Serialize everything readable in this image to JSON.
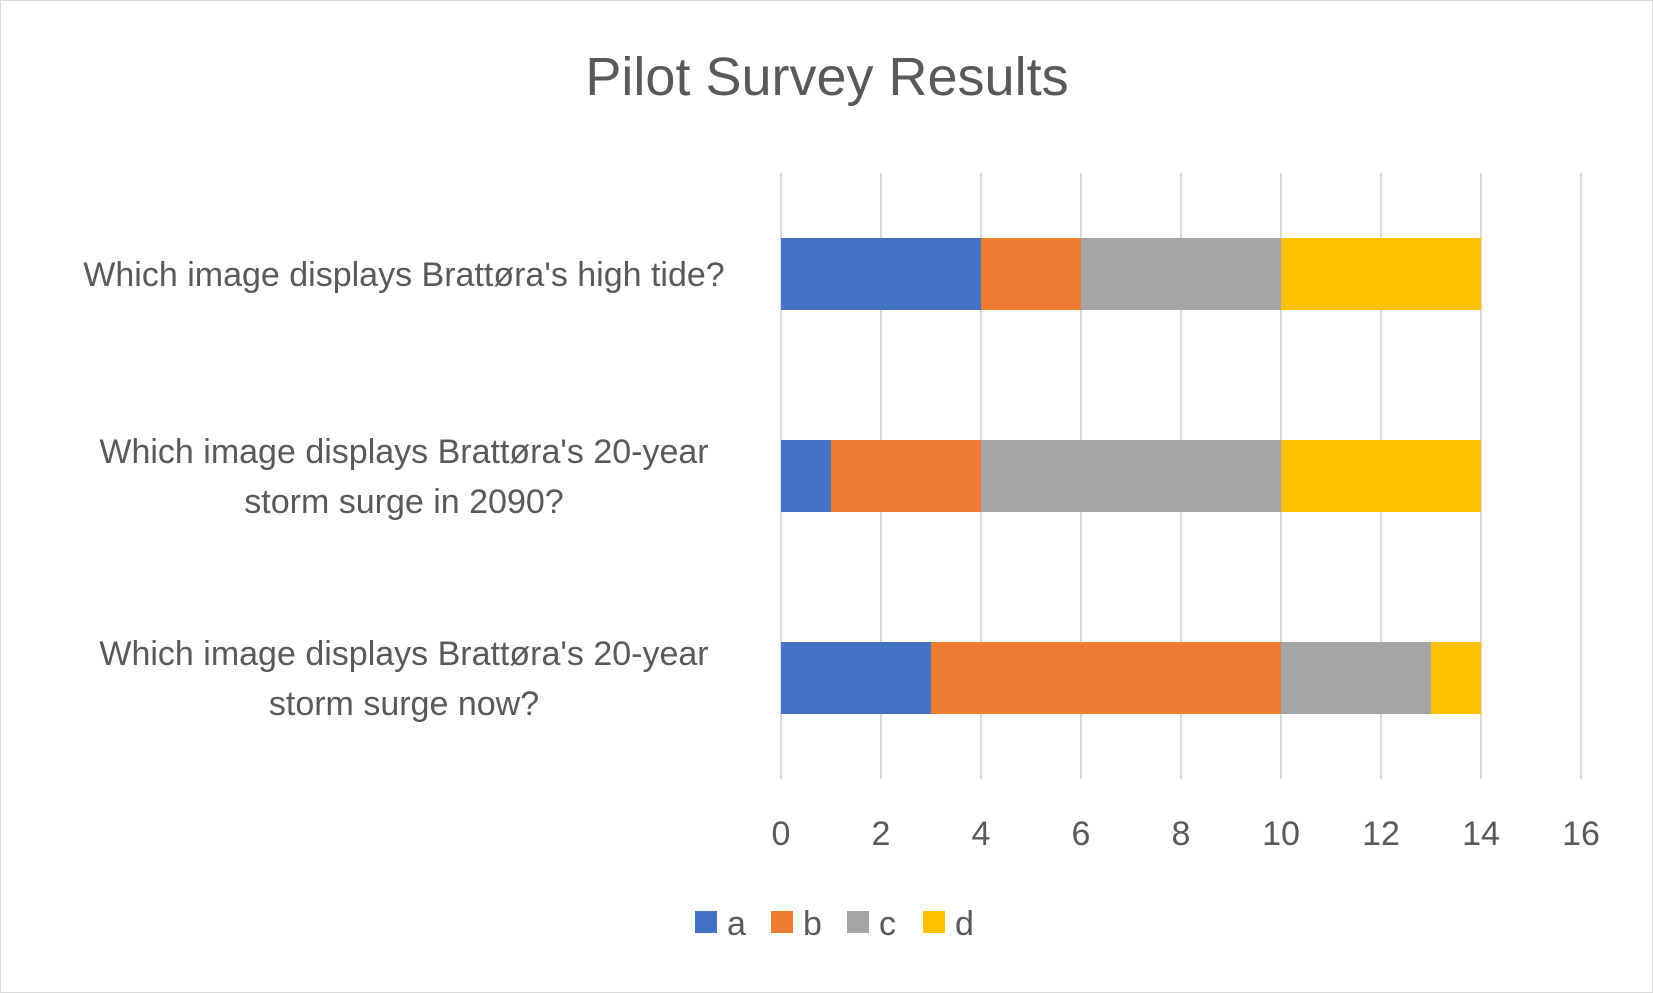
{
  "chart_data": {
    "type": "bar",
    "orientation": "horizontal",
    "stacked": true,
    "title": "Pilot Survey Results",
    "xlabel": "",
    "ylabel": "",
    "xlim": [
      0,
      16
    ],
    "x_ticks": [
      "0",
      "2",
      "4",
      "6",
      "8",
      "10",
      "12",
      "14",
      "16"
    ],
    "grid": true,
    "legend_position": "bottom",
    "categories": [
      [
        "Which image displays Brattøra's high tide?"
      ],
      [
        "Which image displays Brattøra's 20-year",
        "storm surge in 2090?"
      ],
      [
        "Which image displays Brattøra's 20-year",
        "storm surge now?"
      ]
    ],
    "series": [
      {
        "name": "a",
        "color": "#4472C4",
        "values": [
          4,
          1,
          3
        ]
      },
      {
        "name": "b",
        "color": "#ED7D31",
        "values": [
          2,
          3,
          7
        ]
      },
      {
        "name": "c",
        "color": "#A5A5A5",
        "values": [
          4,
          6,
          3
        ]
      },
      {
        "name": "d",
        "color": "#FFC000",
        "values": [
          4,
          4,
          1
        ]
      }
    ]
  }
}
